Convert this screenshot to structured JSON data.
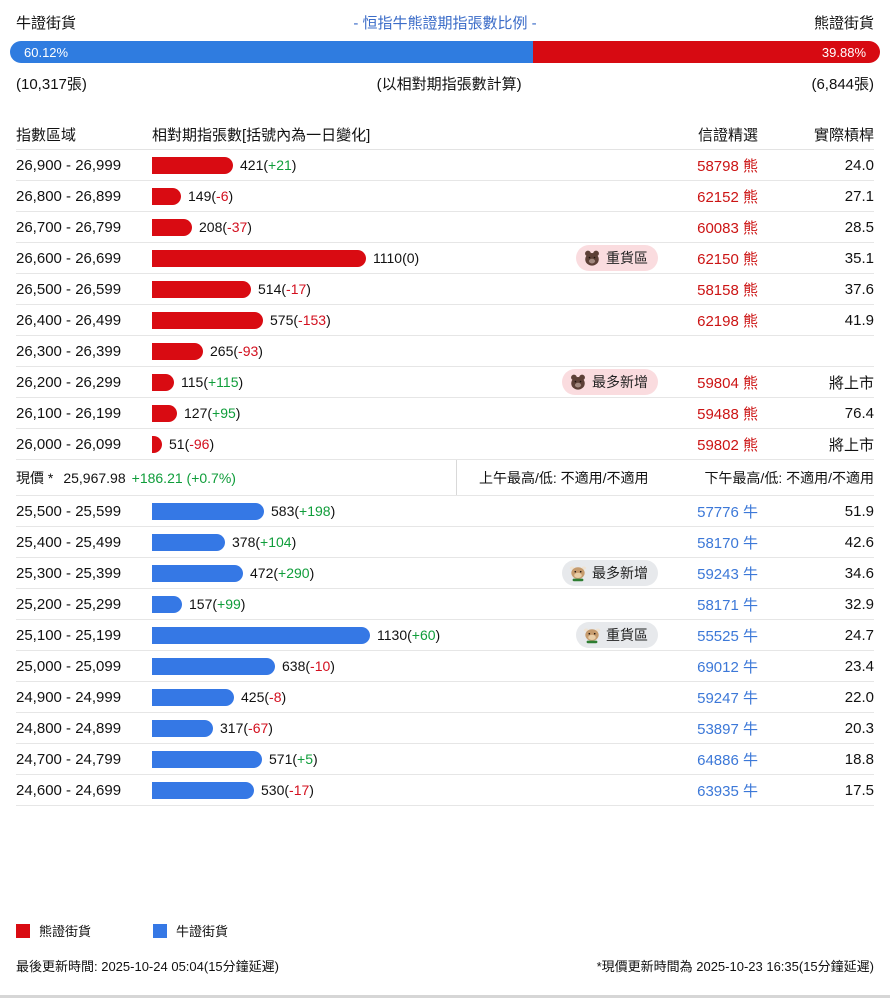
{
  "header": {
    "bull_label": "牛證街貨",
    "title": "- 恒指牛熊證期指張數比例 -",
    "bear_label": "熊證街貨",
    "ratio_bar": {
      "bull_pct": 60.12,
      "bear_pct": 39.88,
      "bull_pct_label": "60.12%",
      "bear_pct_label": "39.88%"
    },
    "bull_contracts": "(10,317張)",
    "note": "(以相對期指張數計算)",
    "bear_contracts": "(6,844張)"
  },
  "table_headers": {
    "range": "指數區域",
    "contracts": "相對期指張數[括號內為一日變化]",
    "featured": "信證精選",
    "leverage": "實際槓桿"
  },
  "current_price_row": {
    "label": "現價 *",
    "price": "25,967.98",
    "change": "+186.21 (+0.7%)",
    "am_high_low": "上午最高/低: 不適用/不適用",
    "pm_high_low": "下午最高/低: 不適用/不適用"
  },
  "legend": [
    {
      "label": "熊證街貨",
      "color": "#d90b12"
    },
    {
      "label": "牛證街貨",
      "color": "#3578e5"
    }
  ],
  "footer": {
    "last_update": "最後更新時間: 2025-10-24 05:04(15分鐘延遲)",
    "price_update": "*現價更新時間為 2025-10-23 16:35(15分鐘延遲)"
  },
  "colors": {
    "bear_red": "#d90b12",
    "bull_blue": "#3578e5",
    "title_blue": "#3b6cc8",
    "positive_green": "#0f9d3a",
    "negative_red": "#d30f1e",
    "bear_badge_bg": "#fadcdf",
    "bull_badge_bg": "#e7e9ec"
  },
  "chart_data": {
    "type": "bar",
    "orientation": "horizontal",
    "title": "- 恒指牛熊證期指張數比例 -",
    "xlabel": "相對期指張數",
    "ylabel": "指數區域",
    "max_value": 1130,
    "bull_total_contracts": 10317,
    "bear_total_contracts": 6844,
    "bull_pct": 60.12,
    "bear_pct": 39.88,
    "series": [
      {
        "name": "熊證街貨",
        "key": "bear",
        "color": "#d90b12",
        "code_suffix": "熊",
        "rows": [
          {
            "range": "26,900 - 26,999",
            "value": 421,
            "change": "+21",
            "badge": null,
            "code": "58798",
            "code_suffix": "熊",
            "leverage": "24.0"
          },
          {
            "range": "26,800 - 26,899",
            "value": 149,
            "change": "-6",
            "badge": null,
            "code": "62152",
            "code_suffix": "熊",
            "leverage": "27.1"
          },
          {
            "range": "26,700 - 26,799",
            "value": 208,
            "change": "-37",
            "badge": null,
            "code": "60083",
            "code_suffix": "熊",
            "leverage": "28.5"
          },
          {
            "range": "26,600 - 26,699",
            "value": 1110,
            "change": "0",
            "badge": {
              "label": "重貨區",
              "icon": "bear-mascot"
            },
            "code": "62150",
            "code_suffix": "熊",
            "leverage": "35.1"
          },
          {
            "range": "26,500 - 26,599",
            "value": 514,
            "change": "-17",
            "badge": null,
            "code": "58158",
            "code_suffix": "熊",
            "leverage": "37.6"
          },
          {
            "range": "26,400 - 26,499",
            "value": 575,
            "change": "-153",
            "badge": null,
            "code": "62198",
            "code_suffix": "熊",
            "leverage": "41.9"
          },
          {
            "range": "26,300 - 26,399",
            "value": 265,
            "change": "-93",
            "badge": null,
            "code": "",
            "code_suffix": "",
            "leverage": ""
          },
          {
            "range": "26,200 - 26,299",
            "value": 115,
            "change": "+115",
            "badge": {
              "label": "最多新增",
              "icon": "bear-mascot"
            },
            "code": "59804",
            "code_suffix": "熊",
            "leverage": "將上市"
          },
          {
            "range": "26,100 - 26,199",
            "value": 127,
            "change": "+95",
            "badge": null,
            "code": "59488",
            "code_suffix": "熊",
            "leverage": "76.4"
          },
          {
            "range": "26,000 - 26,099",
            "value": 51,
            "change": "-96",
            "badge": null,
            "code": "59802",
            "code_suffix": "熊",
            "leverage": "將上市"
          }
        ]
      },
      {
        "name": "牛證街貨",
        "key": "bull",
        "color": "#3578e5",
        "code_suffix": "牛",
        "rows": [
          {
            "range": "25,500 - 25,599",
            "value": 583,
            "change": "+198",
            "badge": null,
            "code": "57776",
            "code_suffix": "牛",
            "leverage": "51.9"
          },
          {
            "range": "25,400 - 25,499",
            "value": 378,
            "change": "+104",
            "badge": null,
            "code": "58170",
            "code_suffix": "牛",
            "leverage": "42.6"
          },
          {
            "range": "25,300 - 25,399",
            "value": 472,
            "change": "+290",
            "badge": {
              "label": "最多新增",
              "icon": "bull-mascot"
            },
            "code": "59243",
            "code_suffix": "牛",
            "leverage": "34.6"
          },
          {
            "range": "25,200 - 25,299",
            "value": 157,
            "change": "+99",
            "badge": null,
            "code": "58171",
            "code_suffix": "牛",
            "leverage": "32.9"
          },
          {
            "range": "25,100 - 25,199",
            "value": 1130,
            "change": "+60",
            "badge": {
              "label": "重貨區",
              "icon": "bull-mascot"
            },
            "code": "55525",
            "code_suffix": "牛",
            "leverage": "24.7"
          },
          {
            "range": "25,000 - 25,099",
            "value": 638,
            "change": "-10",
            "badge": null,
            "code": "69012",
            "code_suffix": "牛",
            "leverage": "23.4"
          },
          {
            "range": "24,900 - 24,999",
            "value": 425,
            "change": "-8",
            "badge": null,
            "code": "59247",
            "code_suffix": "牛",
            "leverage": "22.0"
          },
          {
            "range": "24,800 - 24,899",
            "value": 317,
            "change": "-67",
            "badge": null,
            "code": "53897",
            "code_suffix": "牛",
            "leverage": "20.3"
          },
          {
            "range": "24,700 - 24,799",
            "value": 571,
            "change": "+5",
            "badge": null,
            "code": "64886",
            "code_suffix": "牛",
            "leverage": "18.8"
          },
          {
            "range": "24,600 - 24,699",
            "value": 530,
            "change": "-17",
            "badge": null,
            "code": "63935",
            "code_suffix": "牛",
            "leverage": "17.5"
          }
        ]
      }
    ]
  }
}
